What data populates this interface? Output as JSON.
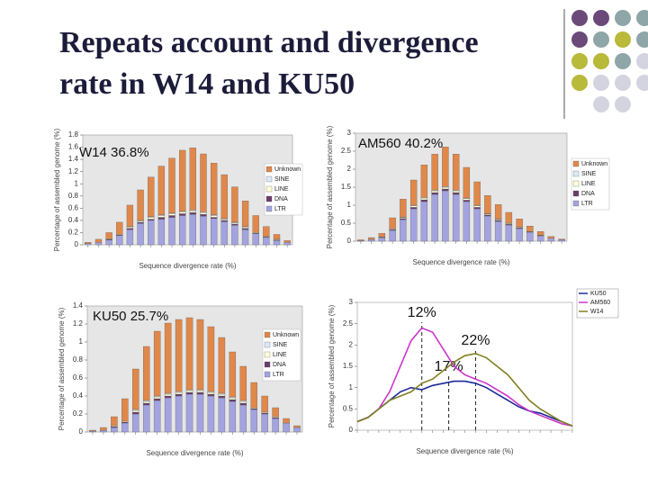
{
  "slide_title": [
    "Repeats account and divergence",
    "rate in W14 and KU50"
  ],
  "chart_data": [
    {
      "type": "bar",
      "title": "W14 36.8%",
      "ylabel": "Percentage of assembled genome (%)",
      "xlabel": "Sequence divergence rate (%)",
      "categories": [
        null,
        null,
        null,
        null,
        null,
        null,
        null,
        null,
        null,
        null,
        null,
        null,
        null,
        null,
        null,
        null,
        null,
        null,
        null,
        null
      ],
      "ylim": [
        0,
        1.8
      ],
      "yticks": [
        0,
        0.2,
        0.4,
        0.6,
        0.8,
        1,
        1.2,
        1.4,
        1.6,
        1.8
      ],
      "stacked": true,
      "series": [
        {
          "name": "LTR",
          "color": "#a3a3e0",
          "values": [
            0.02,
            0.04,
            0.08,
            0.15,
            0.25,
            0.35,
            0.4,
            0.42,
            0.45,
            0.48,
            0.5,
            0.47,
            0.43,
            0.38,
            0.32,
            0.25,
            0.18,
            0.12,
            0.07,
            0.04
          ]
        },
        {
          "name": "DNA",
          "color": "#6b3c6b",
          "values": [
            0,
            0,
            0.01,
            0.01,
            0.02,
            0.02,
            0.02,
            0.03,
            0.03,
            0.03,
            0.03,
            0.03,
            0.02,
            0.02,
            0.02,
            0.02,
            0.01,
            0.01,
            0.01,
            0
          ]
        },
        {
          "name": "LINE",
          "color": "#ffffd8",
          "values": [
            0,
            0,
            0.01,
            0.01,
            0.02,
            0.02,
            0.03,
            0.03,
            0.03,
            0.03,
            0.03,
            0.03,
            0.03,
            0.02,
            0.02,
            0.02,
            0.01,
            0.01,
            0.01,
            0
          ]
        },
        {
          "name": "SINE",
          "color": "#dde8f8",
          "values": [
            0,
            0,
            0,
            0,
            0.01,
            0.01,
            0.01,
            0.01,
            0.01,
            0.01,
            0.01,
            0.01,
            0.01,
            0.01,
            0.01,
            0.01,
            0,
            0,
            0,
            0
          ]
        },
        {
          "name": "Unknown",
          "color": "#e0884a",
          "values": [
            0.02,
            0.05,
            0.1,
            0.2,
            0.35,
            0.5,
            0.65,
            0.8,
            0.9,
            1.0,
            1.02,
            0.95,
            0.85,
            0.72,
            0.58,
            0.42,
            0.28,
            0.16,
            0.08,
            0.03
          ]
        }
      ]
    },
    {
      "type": "bar",
      "title": "AM560 40.2%",
      "ylabel": "Percentage of assembled genome (%)",
      "xlabel": "Sequence divergence rate (%)",
      "categories": [
        null,
        null,
        null,
        null,
        null,
        null,
        null,
        null,
        null,
        null,
        null,
        null,
        null,
        null,
        null,
        null,
        null,
        null,
        null,
        null
      ],
      "ylim": [
        0,
        3
      ],
      "yticks": [
        0,
        0.5,
        1,
        1.5,
        2,
        2.5,
        3
      ],
      "stacked": true,
      "series": [
        {
          "name": "LTR",
          "color": "#a3a3e0",
          "values": [
            0.02,
            0.05,
            0.1,
            0.3,
            0.6,
            0.9,
            1.1,
            1.3,
            1.4,
            1.3,
            1.1,
            0.9,
            0.7,
            0.55,
            0.45,
            0.35,
            0.25,
            0.15,
            0.08,
            0.04
          ]
        },
        {
          "name": "DNA",
          "color": "#6b3c6b",
          "values": [
            0,
            0,
            0.01,
            0.02,
            0.03,
            0.04,
            0.05,
            0.05,
            0.05,
            0.05,
            0.04,
            0.04,
            0.03,
            0.03,
            0.02,
            0.02,
            0.01,
            0.01,
            0,
            0
          ]
        },
        {
          "name": "LINE",
          "color": "#ffffd8",
          "values": [
            0,
            0,
            0.01,
            0.02,
            0.03,
            0.04,
            0.05,
            0.05,
            0.05,
            0.05,
            0.04,
            0.04,
            0.03,
            0.03,
            0.02,
            0.02,
            0.01,
            0.01,
            0,
            0
          ]
        },
        {
          "name": "SINE",
          "color": "#dde8f8",
          "values": [
            0,
            0,
            0,
            0.01,
            0.01,
            0.02,
            0.02,
            0.02,
            0.02,
            0.02,
            0.02,
            0.02,
            0.01,
            0.01,
            0.01,
            0.01,
            0,
            0,
            0,
            0
          ]
        },
        {
          "name": "Unknown",
          "color": "#e0884a",
          "values": [
            0.02,
            0.05,
            0.1,
            0.3,
            0.5,
            0.7,
            0.9,
            1.0,
            1.1,
            1.0,
            0.85,
            0.65,
            0.5,
            0.4,
            0.3,
            0.22,
            0.15,
            0.1,
            0.05,
            0.02
          ]
        }
      ]
    },
    {
      "type": "bar",
      "title": "KU50 25.7%",
      "ylabel": "Percentage of assembled genome (%)",
      "xlabel": "Sequence divergence rate (%)",
      "categories": [
        null,
        null,
        null,
        null,
        null,
        null,
        null,
        null,
        null,
        null,
        null,
        null,
        null,
        null,
        null,
        null,
        null,
        null,
        null,
        null
      ],
      "ylim": [
        0,
        1.4
      ],
      "yticks": [
        0,
        0.2,
        0.4,
        0.6,
        0.8,
        1,
        1.2,
        1.4
      ],
      "stacked": true,
      "series": [
        {
          "name": "LTR",
          "color": "#a3a3e0",
          "values": [
            0.01,
            0.02,
            0.05,
            0.1,
            0.2,
            0.3,
            0.35,
            0.38,
            0.4,
            0.42,
            0.42,
            0.4,
            0.38,
            0.34,
            0.3,
            0.25,
            0.2,
            0.15,
            0.1,
            0.05
          ]
        },
        {
          "name": "DNA",
          "color": "#6b3c6b",
          "values": [
            0,
            0,
            0.01,
            0.01,
            0.02,
            0.02,
            0.02,
            0.02,
            0.02,
            0.02,
            0.02,
            0.02,
            0.02,
            0.02,
            0.02,
            0.01,
            0.01,
            0.01,
            0,
            0
          ]
        },
        {
          "name": "LINE",
          "color": "#ffffd8",
          "values": [
            0,
            0,
            0.01,
            0.01,
            0.02,
            0.02,
            0.02,
            0.02,
            0.02,
            0.02,
            0.02,
            0.02,
            0.02,
            0.02,
            0.02,
            0.01,
            0.01,
            0.01,
            0,
            0
          ]
        },
        {
          "name": "SINE",
          "color": "#dde8f8",
          "values": [
            0,
            0,
            0,
            0,
            0.01,
            0.01,
            0.01,
            0.01,
            0.01,
            0.01,
            0.01,
            0.01,
            0.01,
            0.01,
            0.01,
            0,
            0,
            0,
            0,
            0
          ]
        },
        {
          "name": "Unknown",
          "color": "#e0884a",
          "values": [
            0.01,
            0.03,
            0.1,
            0.25,
            0.45,
            0.6,
            0.72,
            0.78,
            0.8,
            0.8,
            0.78,
            0.72,
            0.62,
            0.5,
            0.38,
            0.28,
            0.18,
            0.1,
            0.05,
            0.02
          ]
        }
      ]
    },
    {
      "type": "line",
      "ylabel": "Percentage of assembled genome (%)",
      "xlabel": "Sequence divergence rate (%)",
      "x": [
        0,
        2,
        4,
        6,
        8,
        10,
        12,
        14,
        16,
        18,
        20,
        22,
        24,
        26,
        28,
        30,
        32,
        34,
        36,
        38,
        40
      ],
      "xlim": [
        0,
        40
      ],
      "ylim": [
        0,
        3
      ],
      "yticks": [
        0,
        0.5,
        1,
        1.5,
        2,
        2.5,
        3
      ],
      "series": [
        {
          "name": "KU50",
          "color": "#1a2a9a",
          "values": [
            0.2,
            0.3,
            0.5,
            0.7,
            0.9,
            1.0,
            0.95,
            1.05,
            1.1,
            1.15,
            1.15,
            1.1,
            1.0,
            0.85,
            0.7,
            0.55,
            0.45,
            0.4,
            0.3,
            0.2,
            0.1
          ]
        },
        {
          "name": "AM560",
          "color": "#cc33cc",
          "values": [
            0.2,
            0.3,
            0.5,
            0.9,
            1.5,
            2.1,
            2.4,
            2.3,
            1.9,
            1.5,
            1.3,
            1.2,
            1.1,
            0.95,
            0.8,
            0.6,
            0.45,
            0.35,
            0.25,
            0.15,
            0.1
          ]
        },
        {
          "name": "W14",
          "color": "#808020",
          "values": [
            0.2,
            0.3,
            0.5,
            0.7,
            0.8,
            0.9,
            1.1,
            1.2,
            1.4,
            1.6,
            1.75,
            1.8,
            1.7,
            1.5,
            1.3,
            1.0,
            0.7,
            0.5,
            0.35,
            0.2,
            0.1
          ]
        }
      ],
      "annotations": [
        {
          "x": 12,
          "text": "12%"
        },
        {
          "x": 22,
          "text": "22%"
        },
        {
          "x": 17,
          "text": "17%"
        }
      ]
    }
  ]
}
